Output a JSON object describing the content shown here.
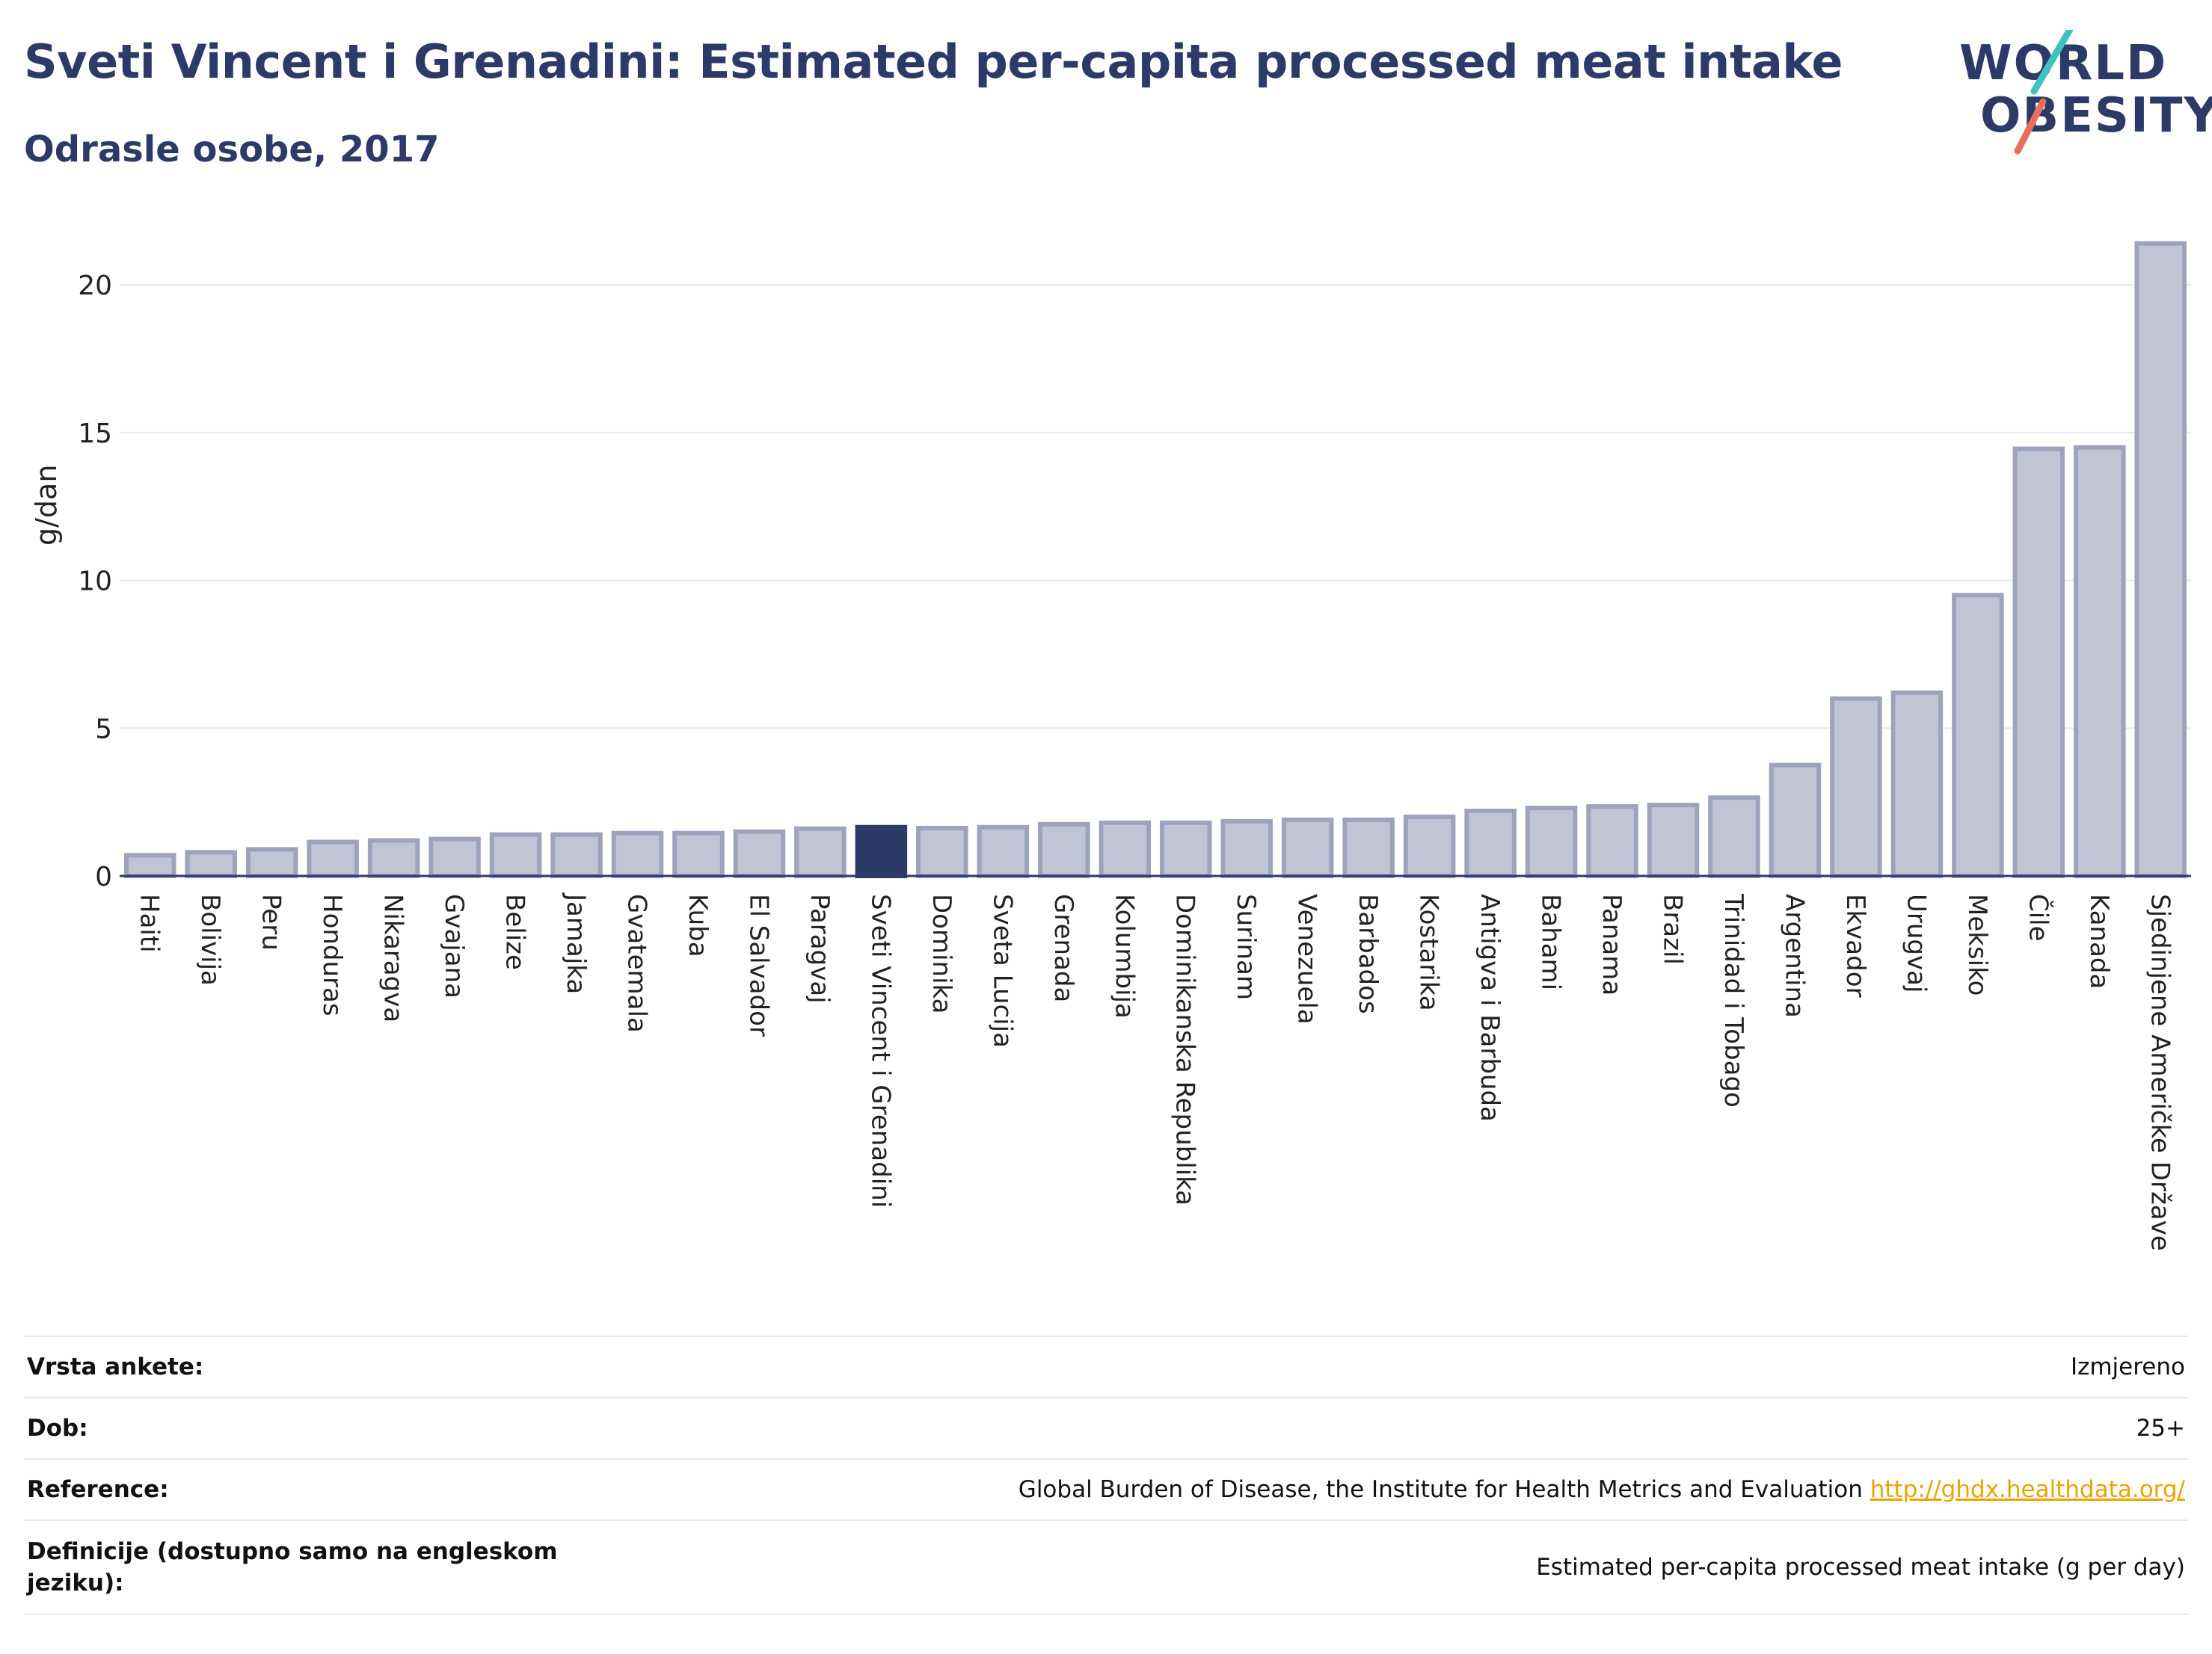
{
  "title": "Sveti Vincent i Grenadini: Estimated per-capita processed meat intake",
  "subtitle": "Odrasle osobe, 2017",
  "logo": {
    "line1": "WORLD",
    "line2": "OBESITY",
    "stripe_colors": [
      "#3ec2c2",
      "#e8705a"
    ]
  },
  "colors": {
    "bar": "#c0c4d4",
    "bar_border": "#9ea3bd",
    "highlight": "#2b3a67",
    "grid": "#e6e8f0",
    "text": "#2b3a67"
  },
  "chart_data": {
    "type": "bar",
    "ylabel": "g/dan",
    "ylim": [
      0,
      22
    ],
    "yticks": [
      0,
      5,
      10,
      15,
      20
    ],
    "highlight": "Sveti Vincent i Grenadini",
    "categories": [
      "Haiti",
      "Bolivija",
      "Peru",
      "Honduras",
      "Nikaragva",
      "Gvajana",
      "Belize",
      "Jamajka",
      "Gvatemala",
      "Kuba",
      "El Salvador",
      "Paragvaj",
      "Sveti Vincent i Grenadini",
      "Dominika",
      "Sveta Lucija",
      "Grenada",
      "Kolumbija",
      "Dominikanska Republika",
      "Surinam",
      "Venezuela",
      "Barbados",
      "Kostarika",
      "Antigva i Barbuda",
      "Bahami",
      "Panama",
      "Brazil",
      "Trinidad i Tobago",
      "Argentina",
      "Ekvador",
      "Urugvaj",
      "Meksiko",
      "Čile",
      "Kanada",
      "Sjedinjene Američke Države"
    ],
    "values": [
      0.7,
      0.8,
      0.9,
      1.15,
      1.2,
      1.25,
      1.4,
      1.4,
      1.45,
      1.45,
      1.5,
      1.6,
      1.65,
      1.62,
      1.65,
      1.75,
      1.8,
      1.8,
      1.85,
      1.9,
      1.9,
      2.0,
      2.2,
      2.3,
      2.35,
      2.4,
      2.65,
      3.75,
      6.0,
      6.2,
      9.5,
      14.45,
      14.5,
      21.4
    ]
  },
  "info": {
    "survey_label": "Vrsta ankete:",
    "survey_value": "Izmjereno",
    "age_label": "Dob:",
    "age_value": "25+",
    "ref_label": "Reference:",
    "ref_text": "Global Burden of Disease, the Institute for Health Metrics and Evaluation",
    "ref_link": "http://ghdx.healthdata.org/",
    "def_label": "Definicije (dostupno samo na engleskom jeziku):",
    "def_value": "Estimated per-capita processed meat intake (g per day)"
  }
}
